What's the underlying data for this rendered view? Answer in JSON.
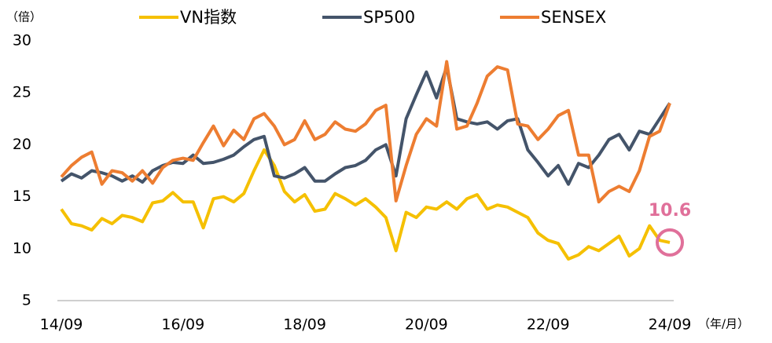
{
  "chart_data": {
    "type": "line",
    "y_label": "（倍）",
    "x_label": "（年/月）",
    "annotation": "10.6",
    "categories": [
      "14/09",
      null,
      null,
      null,
      null,
      null,
      null,
      null,
      null,
      null,
      null,
      null,
      "16/09",
      null,
      null,
      null,
      null,
      null,
      null,
      null,
      null,
      null,
      null,
      null,
      "18/09",
      null,
      null,
      null,
      null,
      null,
      null,
      null,
      null,
      null,
      null,
      null,
      "20/09",
      null,
      null,
      null,
      null,
      null,
      null,
      null,
      null,
      null,
      null,
      null,
      "22/09",
      null,
      null,
      null,
      null,
      null,
      null,
      null,
      null,
      null,
      null,
      null,
      "24/09"
    ],
    "series": [
      {
        "name": "VN指数",
        "color": "#f5c000",
        "values": [
          13.8,
          12.4,
          12.2,
          11.8,
          12.9,
          12.4,
          13.2,
          13.0,
          12.6,
          14.4,
          14.6,
          15.4,
          14.5,
          14.5,
          12.0,
          14.8,
          15.0,
          14.5,
          15.3,
          17.5,
          19.5,
          18.0,
          15.5,
          14.5,
          15.2,
          13.6,
          13.8,
          15.3,
          14.8,
          14.2,
          14.8,
          14.0,
          13.0,
          9.8,
          13.5,
          13.0,
          14.0,
          13.8,
          14.5,
          13.8,
          14.8,
          15.2,
          13.8,
          14.2,
          14.0,
          13.5,
          13.0,
          11.5,
          10.8,
          10.5,
          9.0,
          9.4,
          10.2,
          9.8,
          10.5,
          11.2,
          9.3,
          10.0,
          12.2,
          10.8,
          10.6
        ]
      },
      {
        "name": "SP500",
        "color": "#44546a",
        "values": [
          16.5,
          17.2,
          16.8,
          17.5,
          17.3,
          17.0,
          16.5,
          17.0,
          16.4,
          17.5,
          18.0,
          18.3,
          18.2,
          19.0,
          18.2,
          18.3,
          18.6,
          19.0,
          19.8,
          20.5,
          20.8,
          17.0,
          16.8,
          17.2,
          17.8,
          16.5,
          16.5,
          17.2,
          17.8,
          18.0,
          18.5,
          19.5,
          20.0,
          17.0,
          22.5,
          24.8,
          27.0,
          24.5,
          27.5,
          22.5,
          22.2,
          22.0,
          22.2,
          21.5,
          22.3,
          22.5,
          19.5,
          18.3,
          17.0,
          18.0,
          16.2,
          18.2,
          17.8,
          19.0,
          20.5,
          21.0,
          19.5,
          21.3,
          21.0,
          22.5,
          24.0
        ]
      },
      {
        "name": "SENSEX",
        "color": "#ed7d31",
        "values": [
          16.9,
          18.0,
          18.8,
          19.3,
          16.2,
          17.5,
          17.3,
          16.5,
          17.5,
          16.3,
          17.8,
          18.5,
          18.7,
          18.5,
          20.2,
          21.8,
          19.9,
          21.4,
          20.5,
          22.5,
          23.0,
          21.8,
          20.0,
          20.5,
          22.3,
          20.5,
          21.0,
          22.2,
          21.5,
          21.3,
          22.0,
          23.3,
          23.8,
          14.6,
          18.0,
          21.0,
          22.5,
          21.8,
          28.0,
          21.5,
          21.8,
          24.0,
          26.6,
          27.5,
          27.2,
          22.0,
          21.8,
          20.5,
          21.5,
          22.8,
          23.3,
          19.0,
          19.0,
          14.5,
          15.5,
          16.0,
          15.5,
          17.5,
          20.8,
          21.3,
          24.0
        ]
      }
    ],
    "ylim": [
      5,
      30
    ],
    "yticks": [
      5,
      10,
      15,
      20,
      25,
      30
    ]
  }
}
